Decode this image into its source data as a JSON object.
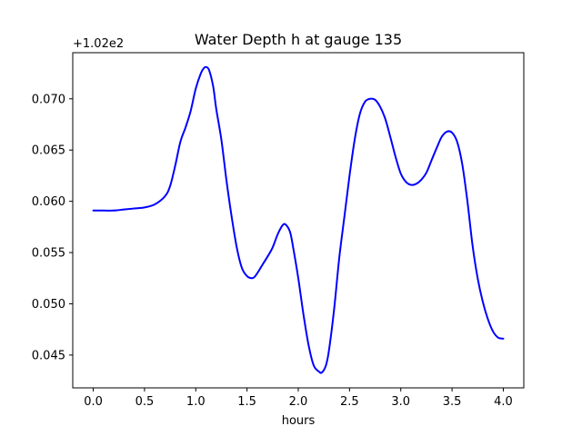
{
  "chart_data": {
    "type": "line",
    "title": "Water Depth h at gauge 135",
    "xlabel": "hours",
    "ylabel": "",
    "offset_text": "+1.02e2",
    "xlim": [
      -0.2,
      4.2
    ],
    "ylim": [
      0.0418,
      0.0745
    ],
    "xticks": [
      0.0,
      0.5,
      1.0,
      1.5,
      2.0,
      2.5,
      3.0,
      3.5,
      4.0
    ],
    "xtick_labels": [
      "0.0",
      "0.5",
      "1.0",
      "1.5",
      "2.0",
      "2.5",
      "3.0",
      "3.5",
      "4.0"
    ],
    "yticks": [
      0.045,
      0.05,
      0.055,
      0.06,
      0.065,
      0.07
    ],
    "ytick_labels": [
      "0.045",
      "0.050",
      "0.055",
      "0.060",
      "0.065",
      "0.070"
    ],
    "grid": false,
    "colors": {
      "line": "#0000ff",
      "axes": "#000000",
      "background": "#ffffff"
    },
    "series": [
      {
        "x": [
          0.0,
          0.1,
          0.2,
          0.3,
          0.4,
          0.5,
          0.6,
          0.7,
          0.75,
          0.8,
          0.85,
          0.9,
          0.95,
          1.0,
          1.05,
          1.08,
          1.1,
          1.13,
          1.17,
          1.2,
          1.25,
          1.3,
          1.35,
          1.4,
          1.45,
          1.5,
          1.55,
          1.58,
          1.62,
          1.65,
          1.7,
          1.75,
          1.8,
          1.85,
          1.88,
          1.92,
          1.95,
          2.0,
          2.05,
          2.1,
          2.15,
          2.2,
          2.23,
          2.27,
          2.3,
          2.35,
          2.4,
          2.45,
          2.5,
          2.55,
          2.6,
          2.65,
          2.7,
          2.75,
          2.8,
          2.85,
          2.9,
          2.95,
          3.0,
          3.05,
          3.1,
          3.15,
          3.2,
          3.25,
          3.3,
          3.35,
          3.4,
          3.45,
          3.5,
          3.55,
          3.6,
          3.65,
          3.7,
          3.75,
          3.8,
          3.85,
          3.9,
          3.95,
          4.0
        ],
        "y": [
          0.0591,
          0.0591,
          0.0591,
          0.0592,
          0.0593,
          0.0594,
          0.0597,
          0.0605,
          0.0615,
          0.0635,
          0.0658,
          0.0672,
          0.0688,
          0.071,
          0.0725,
          0.073,
          0.0731,
          0.0728,
          0.0712,
          0.069,
          0.066,
          0.062,
          0.0585,
          0.0555,
          0.0535,
          0.0527,
          0.0525,
          0.0527,
          0.0533,
          0.0538,
          0.0546,
          0.0555,
          0.0568,
          0.0577,
          0.0577,
          0.057,
          0.0555,
          0.0525,
          0.049,
          0.046,
          0.044,
          0.0434,
          0.0433,
          0.044,
          0.0455,
          0.0495,
          0.0545,
          0.0585,
          0.0625,
          0.066,
          0.0685,
          0.0697,
          0.07,
          0.0699,
          0.0692,
          0.068,
          0.0662,
          0.0643,
          0.0627,
          0.0619,
          0.0616,
          0.0617,
          0.0621,
          0.0628,
          0.064,
          0.0652,
          0.0663,
          0.0668,
          0.0667,
          0.0658,
          0.0636,
          0.06,
          0.0557,
          0.0525,
          0.0502,
          0.0485,
          0.0473,
          0.0467,
          0.0466
        ]
      }
    ]
  }
}
